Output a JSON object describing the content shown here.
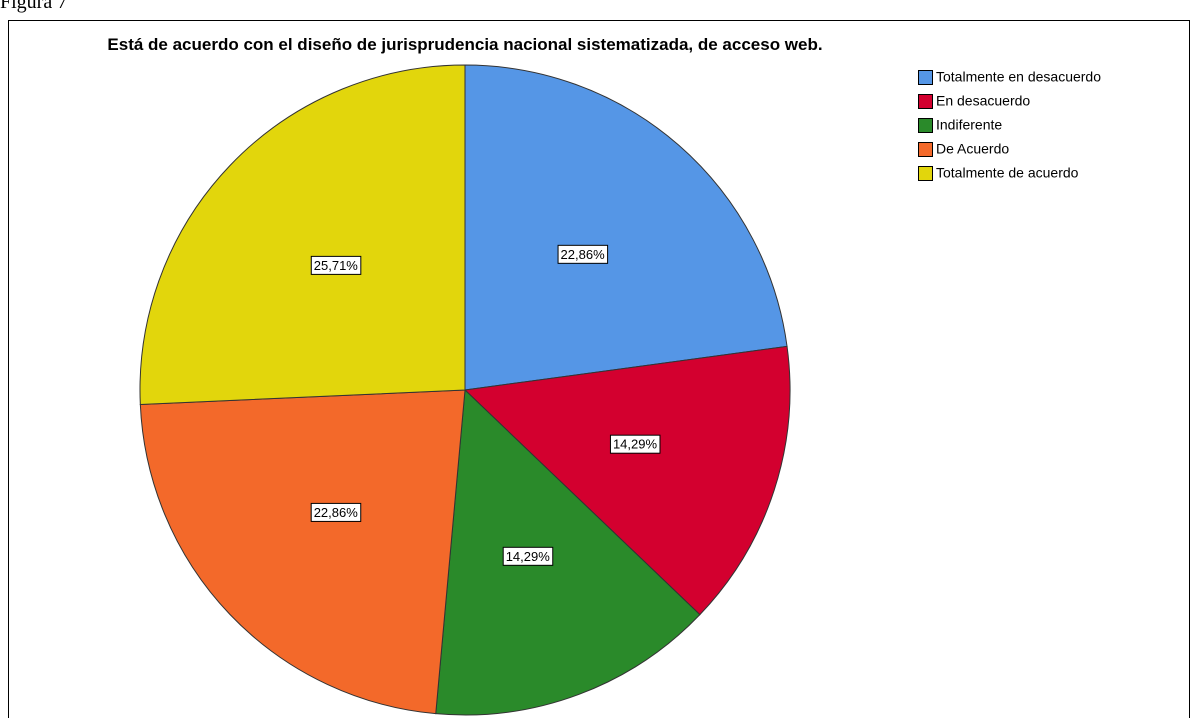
{
  "figure_label": "Figura 7",
  "chart_data": {
    "type": "pie",
    "title": "Está de acuerdo con el diseño de jurisprudencia nacional sistematizada, de acceso web.",
    "categories": [
      "Totalmente en desacuerdo",
      "En desacuerdo",
      "Indiferente",
      "De Acuerdo",
      "Totalmente de acuerdo"
    ],
    "values": [
      22.86,
      14.29,
      14.29,
      22.86,
      25.71
    ],
    "value_labels": [
      "22,86%",
      "14,29%",
      "14,29%",
      "22,86%",
      "25,71%"
    ],
    "colors": [
      "#5596e6",
      "#d3002f",
      "#2a8a2a",
      "#f3692a",
      "#e2d60c"
    ],
    "legend": "top-right"
  }
}
